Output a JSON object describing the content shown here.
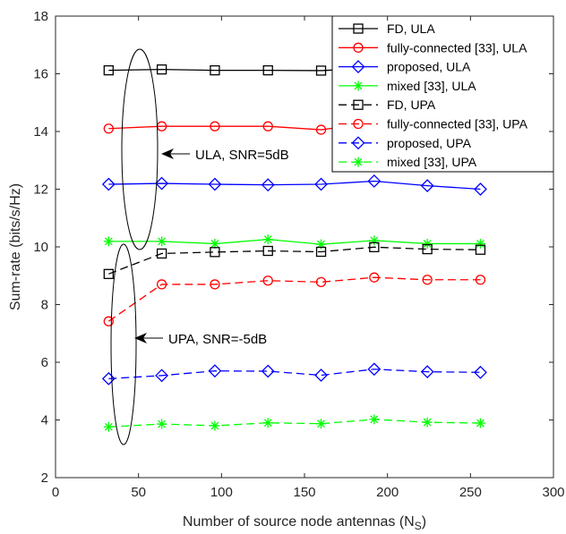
{
  "chart_data": {
    "type": "line",
    "xlabel": "Number of source node antennas (N",
    "xlabel_sub": "S",
    "xlabel_close": ")",
    "ylabel": "Sum-rate (bits/s/Hz)",
    "xlim": [
      0,
      300
    ],
    "ylim": [
      2,
      18
    ],
    "xticks": [
      0,
      50,
      100,
      150,
      200,
      250,
      300
    ],
    "yticks": [
      2,
      4,
      6,
      8,
      10,
      12,
      14,
      16,
      18
    ],
    "grid": false,
    "legend_position": "top-right",
    "x": [
      32,
      64,
      96,
      128,
      160,
      192,
      224,
      256
    ],
    "series": [
      {
        "name": "FD, ULA",
        "color": "#000000",
        "marker": "square",
        "dash": "solid",
        "values": [
          16.12,
          16.15,
          16.12,
          16.12,
          16.11,
          16.2,
          16.15,
          16.12
        ]
      },
      {
        "name": "fully-connected [33], ULA",
        "color": "#ff0000",
        "marker": "circle",
        "dash": "solid",
        "values": [
          14.1,
          14.18,
          14.18,
          14.18,
          14.06,
          14.3,
          14.25,
          14.15
        ]
      },
      {
        "name": "proposed, ULA",
        "color": "#0000ff",
        "marker": "diamond",
        "dash": "solid",
        "values": [
          12.17,
          12.2,
          12.17,
          12.15,
          12.17,
          12.28,
          12.12,
          12.0
        ]
      },
      {
        "name": "mixed [33], ULA",
        "color": "#00ff00",
        "marker": "asterisk",
        "dash": "solid",
        "values": [
          10.19,
          10.19,
          10.11,
          10.26,
          10.09,
          10.22,
          10.11,
          10.11
        ]
      },
      {
        "name": "FD, UPA",
        "color": "#000000",
        "marker": "square",
        "dash": "dashed",
        "values": [
          9.06,
          9.77,
          9.82,
          9.86,
          9.83,
          9.99,
          9.92,
          9.9
        ]
      },
      {
        "name": "fully-connected [33], UPA",
        "color": "#ff0000",
        "marker": "circle",
        "dash": "dashed",
        "values": [
          7.42,
          8.7,
          8.7,
          8.83,
          8.78,
          8.94,
          8.86,
          8.86
        ]
      },
      {
        "name": "proposed, UPA",
        "color": "#0000ff",
        "marker": "diamond",
        "dash": "dashed",
        "values": [
          5.43,
          5.54,
          5.7,
          5.69,
          5.55,
          5.76,
          5.67,
          5.65
        ]
      },
      {
        "name": "mixed [33], UPA",
        "color": "#00ff00",
        "marker": "asterisk",
        "dash": "dashed",
        "values": [
          3.76,
          3.86,
          3.8,
          3.9,
          3.87,
          4.02,
          3.92,
          3.89
        ]
      }
    ],
    "annotations": [
      {
        "text": "ULA, SNR=5dB"
      },
      {
        "text": "UPA, SNR=-5dB"
      }
    ]
  }
}
